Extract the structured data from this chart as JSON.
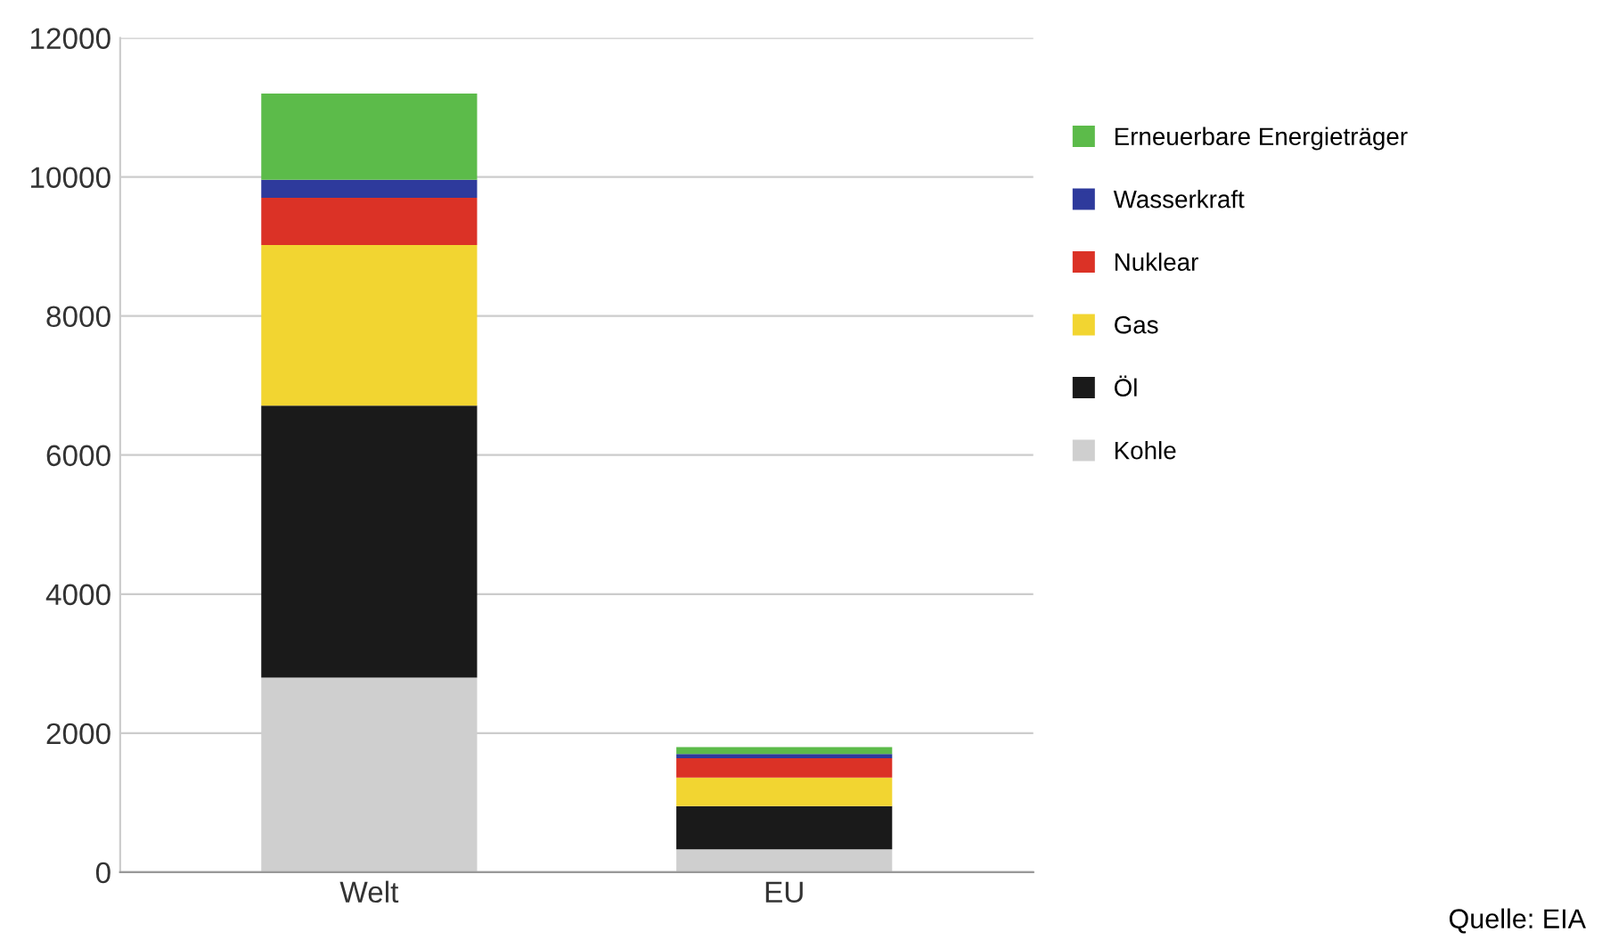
{
  "chart_data": {
    "type": "bar",
    "stacked": true,
    "categories": [
      "Welt",
      "EU"
    ],
    "series": [
      {
        "name": "Kohle",
        "color": "#cfcfcf",
        "values": [
          2800,
          330
        ]
      },
      {
        "name": "Öl",
        "color": "#1a1a1a",
        "values": [
          3910,
          620
        ]
      },
      {
        "name": "Gas",
        "color": "#f2d531",
        "values": [
          2310,
          410
        ]
      },
      {
        "name": "Nuklear",
        "color": "#db3226",
        "values": [
          680,
          280
        ]
      },
      {
        "name": "Wasserkraft",
        "color": "#2e3a9c",
        "values": [
          260,
          60
        ]
      },
      {
        "name": "Erneuerbare Energieträger",
        "color": "#5cbb4a",
        "values": [
          1240,
          100
        ]
      }
    ],
    "ylim": [
      0,
      12000
    ],
    "yticks": [
      0,
      2000,
      4000,
      6000,
      8000,
      10000,
      12000
    ],
    "grid": "y",
    "legend": "right",
    "annotations": [
      "Quelle: EIA"
    ]
  }
}
